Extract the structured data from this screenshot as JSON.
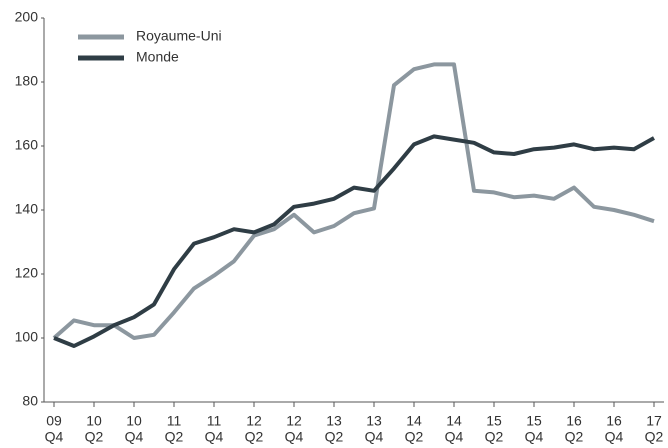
{
  "chart_data": {
    "type": "line",
    "categories": [
      {
        "year": "09",
        "quarter": "Q4"
      },
      null,
      {
        "year": "10",
        "quarter": "Q2"
      },
      null,
      {
        "year": "10",
        "quarter": "Q4"
      },
      null,
      {
        "year": "11",
        "quarter": "Q2"
      },
      null,
      {
        "year": "11",
        "quarter": "Q4"
      },
      null,
      {
        "year": "12",
        "quarter": "Q2"
      },
      null,
      {
        "year": "12",
        "quarter": "Q4"
      },
      null,
      {
        "year": "13",
        "quarter": "Q2"
      },
      null,
      {
        "year": "13",
        "quarter": "Q4"
      },
      null,
      {
        "year": "14",
        "quarter": "Q2"
      },
      null,
      {
        "year": "14",
        "quarter": "Q4"
      },
      null,
      {
        "year": "15",
        "quarter": "Q2"
      },
      null,
      {
        "year": "15",
        "quarter": "Q4"
      },
      null,
      {
        "year": "16",
        "quarter": "Q2"
      },
      null,
      {
        "year": "16",
        "quarter": "Q4"
      },
      null,
      {
        "year": "17",
        "quarter": "Q2"
      }
    ],
    "series": [
      {
        "name": "Royaume-Uni",
        "color": "#8c979f",
        "values": [
          100,
          105.5,
          104,
          104,
          100,
          101,
          108,
          115.5,
          119.5,
          124,
          132,
          134,
          138.5,
          133,
          135,
          139,
          140.5,
          179,
          184,
          185.5,
          185.5,
          146,
          145.5,
          144,
          144.5,
          143.5,
          147,
          141,
          140,
          138.5,
          136.5
        ]
      },
      {
        "name": "Monde",
        "color": "#2f3d45",
        "values": [
          100,
          97.5,
          100.5,
          104,
          106.5,
          110.5,
          121.5,
          129.5,
          131.5,
          134,
          133,
          135.5,
          141,
          142,
          143.5,
          147,
          146,
          153,
          160.5,
          163,
          162,
          161,
          158,
          157.5,
          159,
          159.5,
          160.5,
          159,
          159.5,
          159,
          162.5
        ]
      }
    ],
    "ylim": [
      80,
      200
    ],
    "yticks": [
      80,
      100,
      120,
      140,
      160,
      180,
      200
    ],
    "grid": false,
    "legend": "top-left"
  }
}
